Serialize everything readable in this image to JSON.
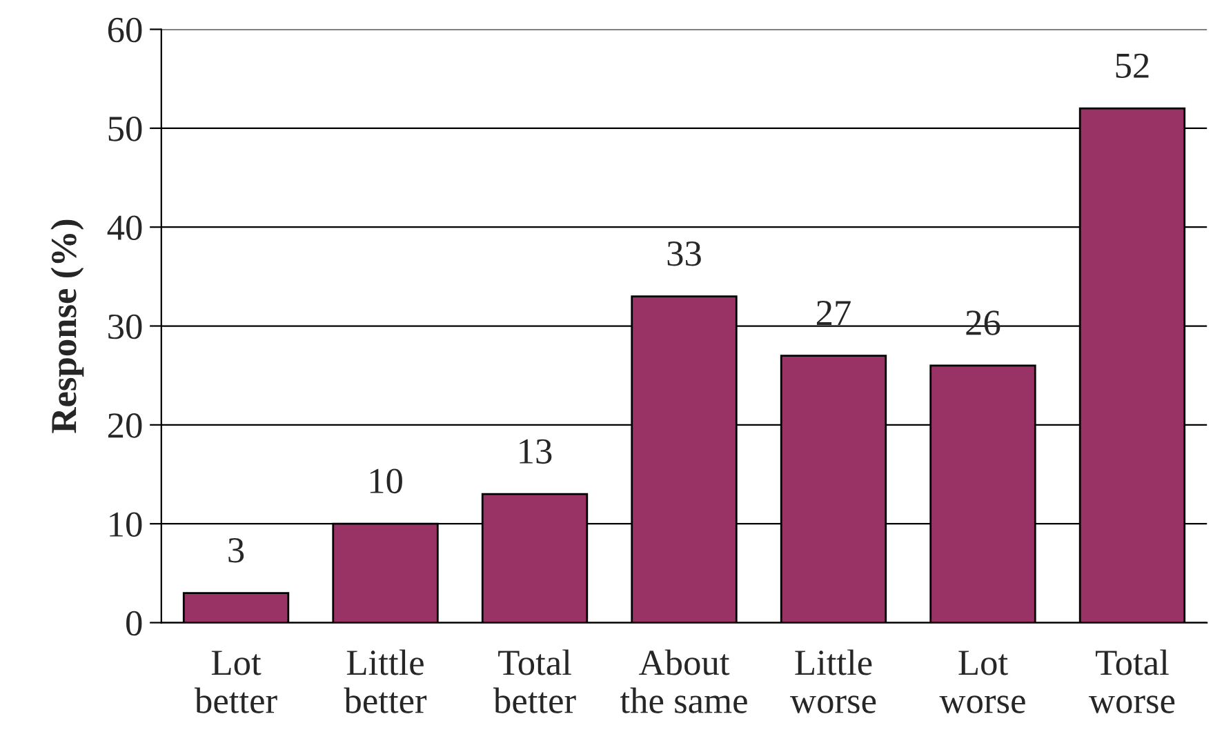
{
  "chart_data": {
    "type": "bar",
    "ylabel": "Response (%)",
    "categories": [
      "Lot\nbetter",
      "Little\nbetter",
      "Total\nbetter",
      "About\nthe same",
      "Little\nworse",
      "Lot\nworse",
      "Total\nworse"
    ],
    "values": [
      3,
      10,
      13,
      33,
      27,
      26,
      52
    ],
    "color": "#993366",
    "ylim": [
      0,
      60
    ],
    "yticks": [
      0,
      10,
      20,
      30,
      40,
      50,
      60
    ],
    "grid": "y",
    "data_labels": true
  }
}
